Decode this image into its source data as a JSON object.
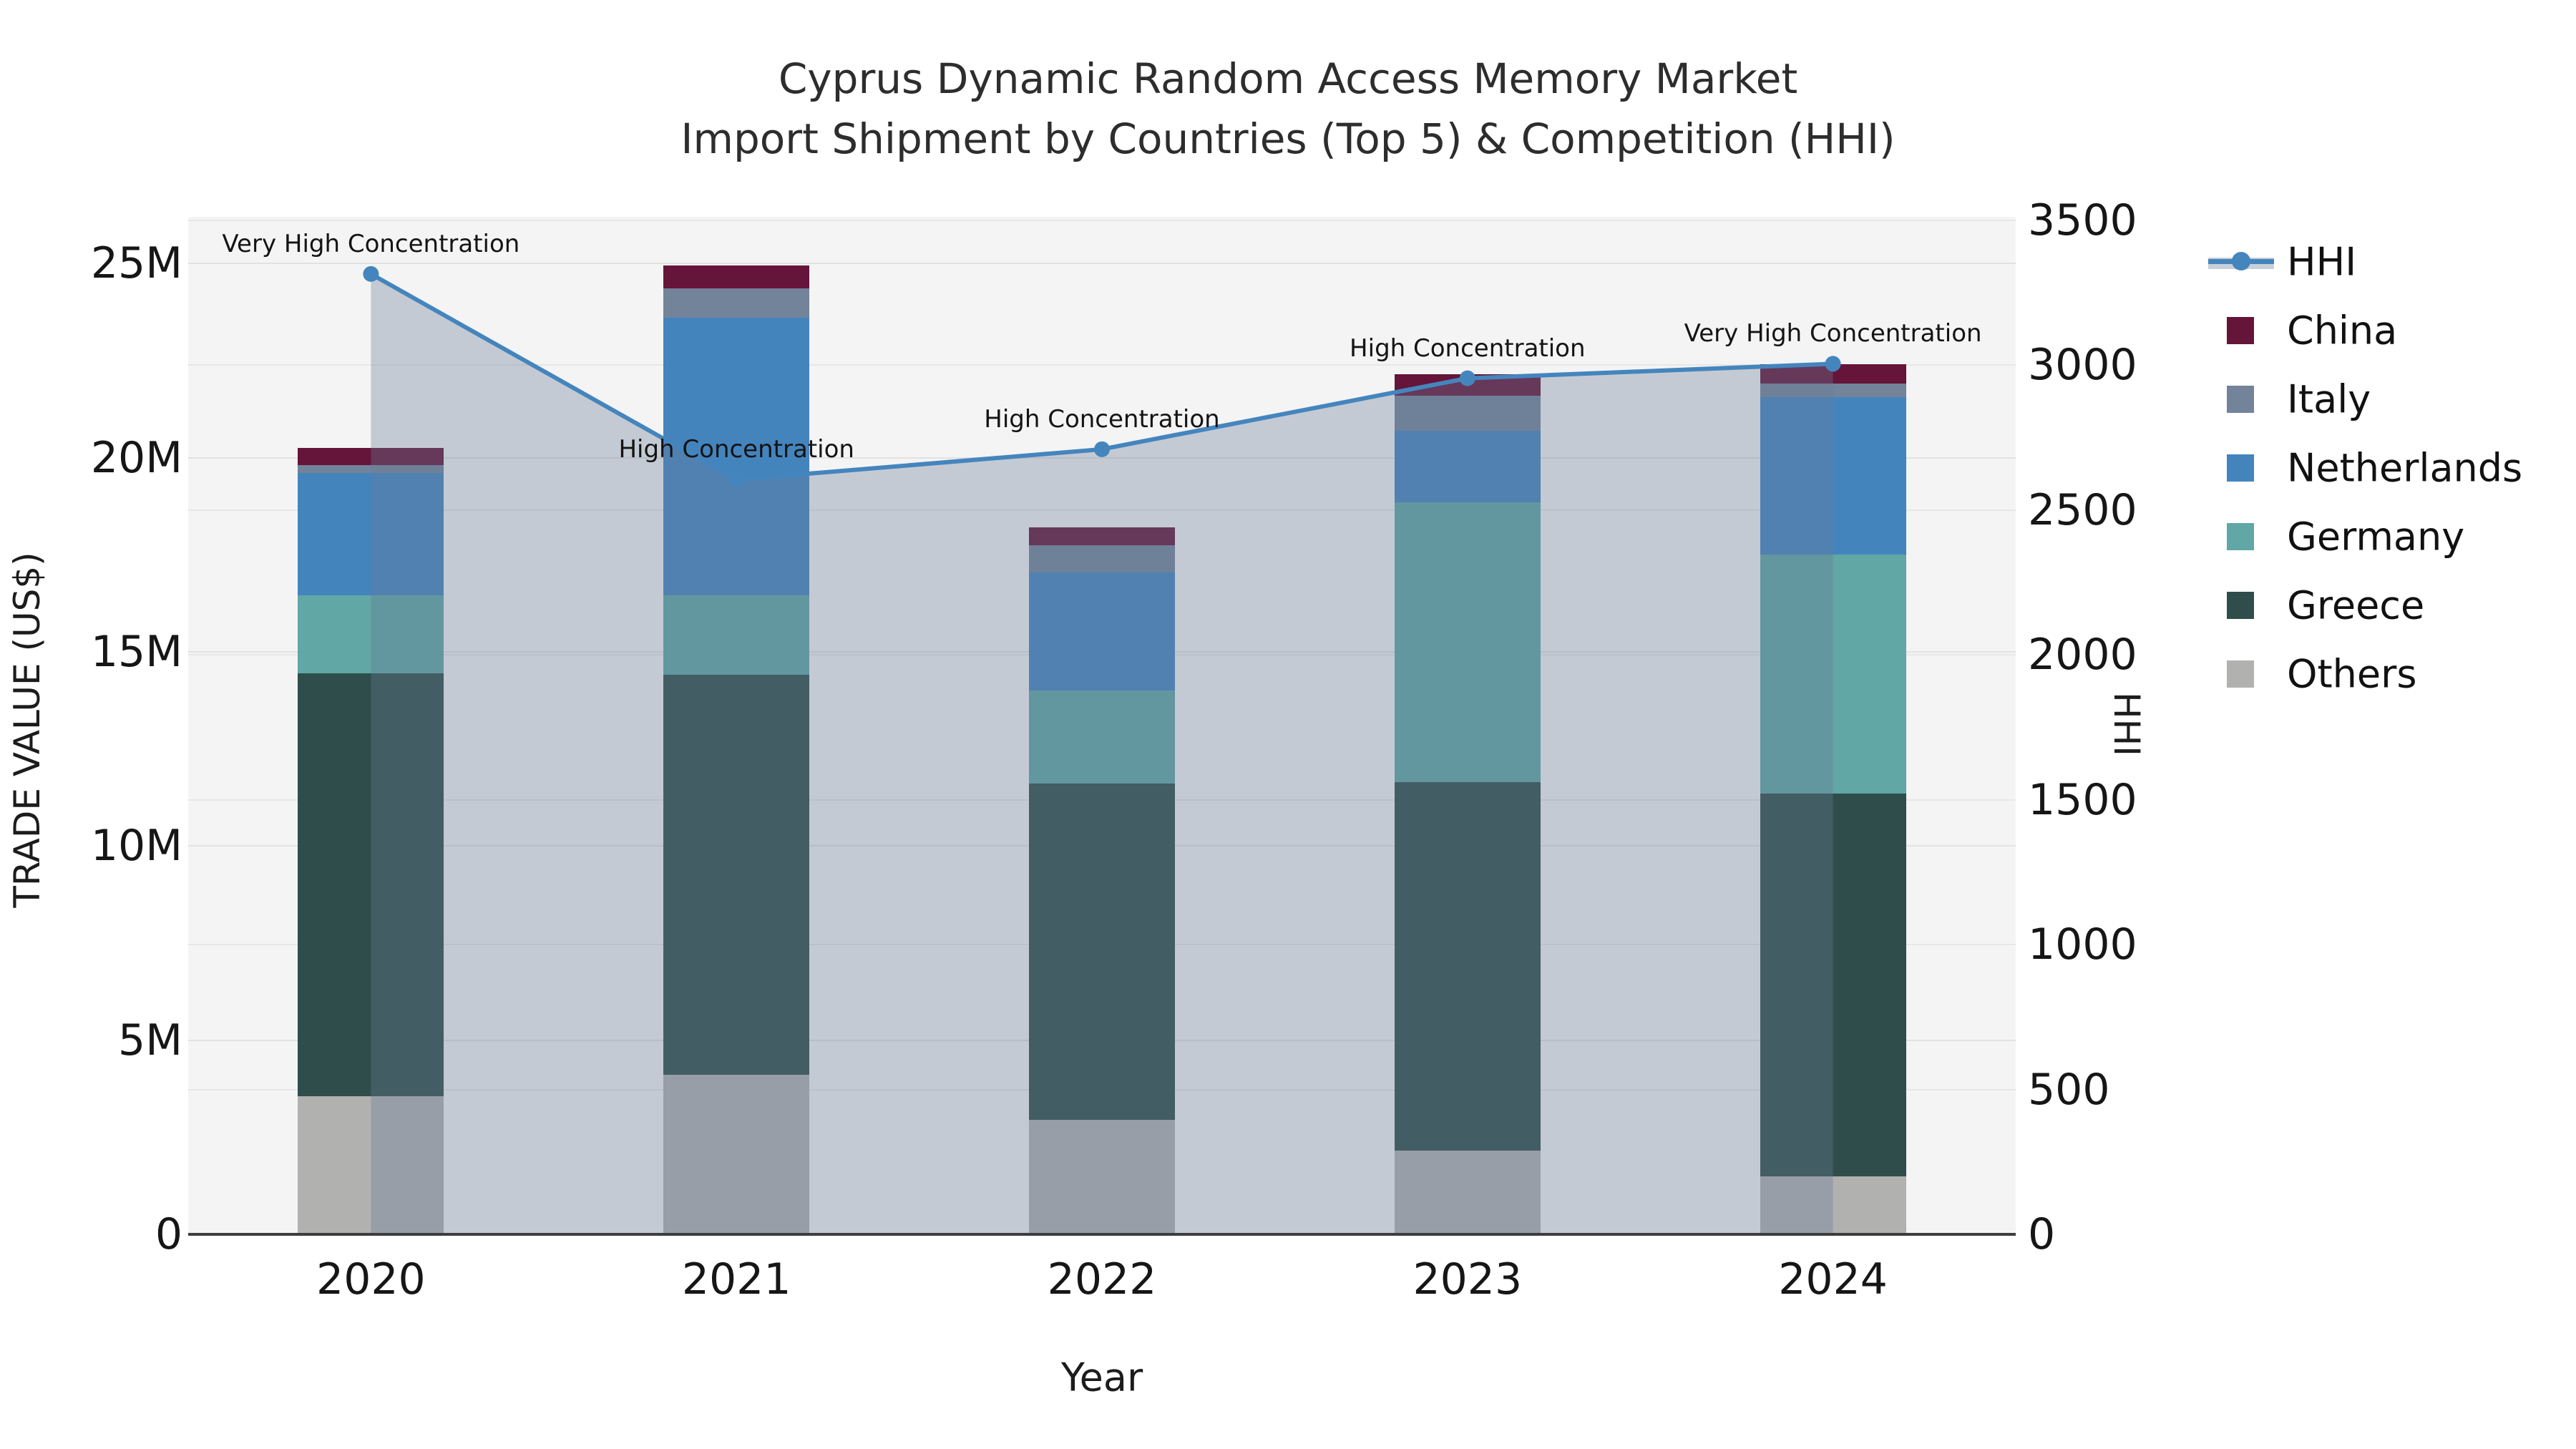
{
  "chart_data": {
    "type": "bar+line",
    "title": "Cyprus Dynamic Random Access Memory Market",
    "subtitle": "Import Shipment by Countries (Top 5) & Competition (HHI)",
    "xlabel": "Year",
    "ylabel": "TRADE VALUE (US$)",
    "y2label": "HHI",
    "categories": [
      "2020",
      "2021",
      "2022",
      "2023",
      "2024"
    ],
    "value_unit": "M US$ (trade value, left axis)",
    "stack_note": "series listed bottom-to-top of stack",
    "series": [
      {
        "name": "Others",
        "color": "#b1b1af",
        "values": [
          3.55,
          4.1,
          2.95,
          2.15,
          1.5
        ]
      },
      {
        "name": "Greece",
        "color": "#2f4e4b",
        "values": [
          10.9,
          10.3,
          8.65,
          9.5,
          9.85
        ]
      },
      {
        "name": "Germany",
        "color": "#60a7a5",
        "values": [
          2.0,
          2.05,
          2.4,
          7.2,
          6.15
        ]
      },
      {
        "name": "Netherlands",
        "color": "#4484bd",
        "values": [
          3.15,
          7.15,
          3.05,
          1.85,
          4.05
        ]
      },
      {
        "name": "Italy",
        "color": "#72839a",
        "values": [
          0.2,
          0.75,
          0.7,
          0.9,
          0.35
        ]
      },
      {
        "name": "China",
        "color": "#65143a",
        "values": [
          0.45,
          0.6,
          0.45,
          0.55,
          0.5
        ]
      }
    ],
    "line_series": {
      "name": "HHI",
      "color": "#4585bd",
      "area_fill": "rgba(105,122,152,0.35)",
      "values": [
        3315,
        2605,
        2710,
        2955,
        3005
      ]
    },
    "annotations": [
      {
        "category_index": 0,
        "text": "Very High Concentration"
      },
      {
        "category_index": 1,
        "text": "High Concentration"
      },
      {
        "category_index": 2,
        "text": "High Concentration"
      },
      {
        "category_index": 3,
        "text": "High Concentration"
      },
      {
        "category_index": 4,
        "text": "Very High Concentration"
      }
    ],
    "y_ticks": [
      {
        "v": 0,
        "label": "0"
      },
      {
        "v": 5,
        "label": "5M"
      },
      {
        "v": 10,
        "label": "10M"
      },
      {
        "v": 15,
        "label": "15M"
      },
      {
        "v": 20,
        "label": "20M"
      },
      {
        "v": 25,
        "label": "25M"
      }
    ],
    "y2_ticks": [
      {
        "v": 0,
        "label": "0"
      },
      {
        "v": 500,
        "label": "500"
      },
      {
        "v": 1000,
        "label": "1000"
      },
      {
        "v": 1500,
        "label": "1500"
      },
      {
        "v": 2000,
        "label": "2000"
      },
      {
        "v": 2500,
        "label": "2500"
      },
      {
        "v": 3000,
        "label": "3000"
      },
      {
        "v": 3500,
        "label": "3500"
      }
    ],
    "ylim": [
      0,
      26.2
    ],
    "y2lim": [
      0,
      3500
    ],
    "grid": true,
    "legend_position": "right",
    "legend_order": [
      "HHI",
      "China",
      "Italy",
      "Netherlands",
      "Germany",
      "Greece",
      "Others"
    ],
    "colors": {
      "plot_background": "#f4f4f4",
      "page_background": "#ffffff",
      "gridline": "#e2e2e2",
      "axis_line": "#3d3d3d",
      "hhi_legend_band": "#c9cfd9"
    }
  }
}
